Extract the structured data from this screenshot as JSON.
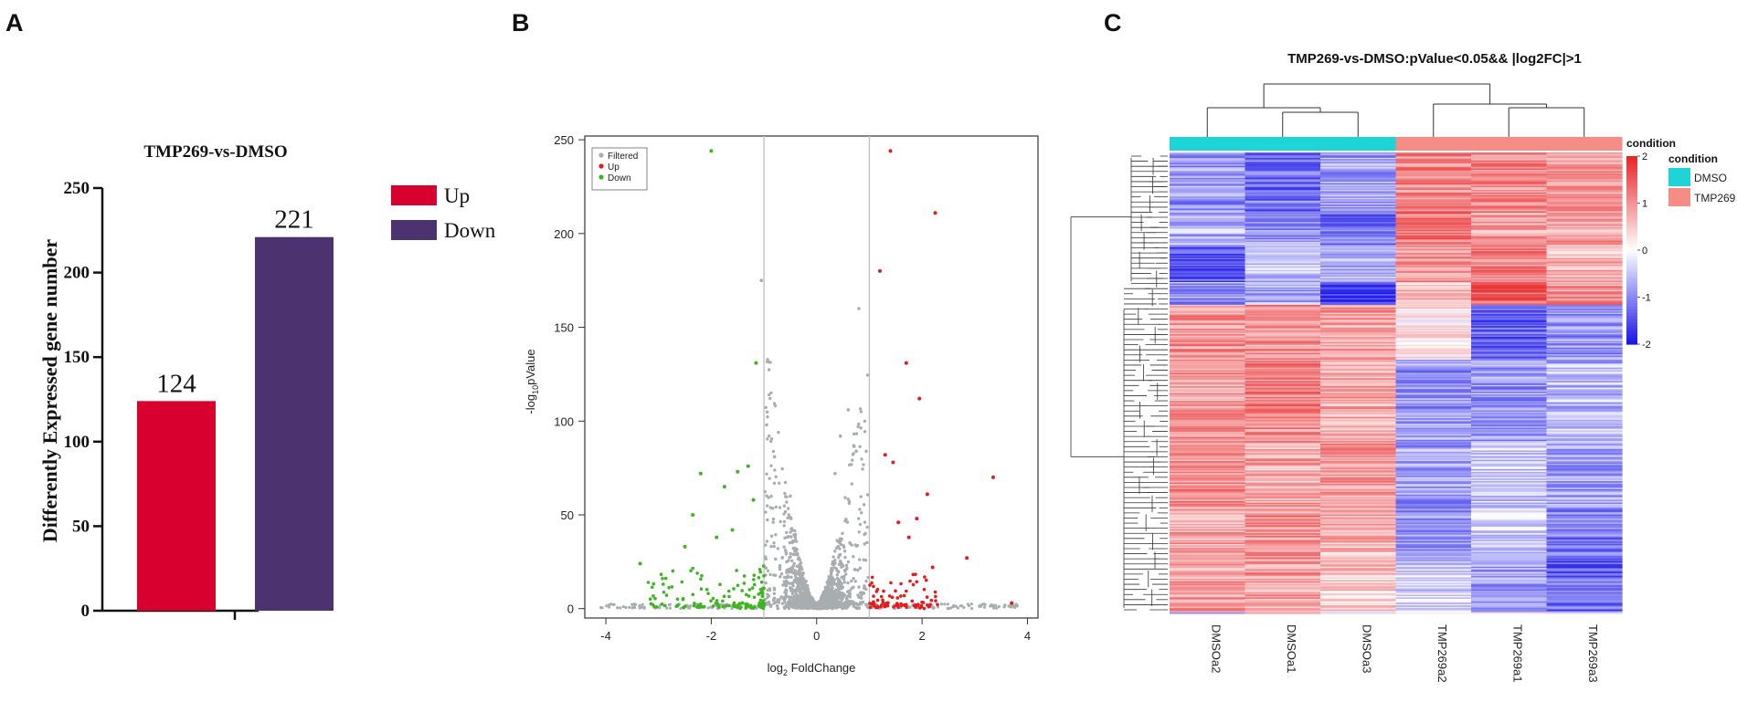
{
  "panels": {
    "a": {
      "letter": "A"
    },
    "b": {
      "letter": "B"
    },
    "c": {
      "letter": "C"
    }
  },
  "colors": {
    "up": "#d8002e",
    "down": "#4d3270",
    "volcano_filtered": "#a8adb0",
    "volcano_up": "#e41a1c",
    "volcano_down": "#3cb521",
    "dmso": "#1fd4d6",
    "tmp269": "#f58c85",
    "heat_high": "#e8272a",
    "heat_mid": "#ffffff",
    "heat_low": "#1c17e8"
  },
  "chart_data": [
    {
      "type": "bar",
      "title": "TMP269-vs-DMSO",
      "ylabel": "Differently Expressed gene number",
      "xlabel": "",
      "ylim": [
        0,
        250
      ],
      "yticks": [
        "0",
        "50",
        "100",
        "150",
        "200",
        "250"
      ],
      "categories": [
        "Up",
        "Down"
      ],
      "values": [
        124,
        221
      ],
      "value_labels": [
        "124",
        "221"
      ],
      "legend": [
        "Up",
        "Down"
      ]
    },
    {
      "type": "scatter",
      "title": "",
      "xlabel_prefix": "log",
      "xlabel_sub": "2",
      "xlabel_suffix": " FoldChange",
      "ylabel_prefix": "-log",
      "ylabel_sub": "10",
      "ylabel_suffix": "pValue",
      "xlim": [
        -4.4,
        4.2
      ],
      "ylim": [
        -5,
        252
      ],
      "xticks": [
        "-4",
        "-2",
        "0",
        "2",
        "4"
      ],
      "yticks": [
        "0",
        "50",
        "100",
        "150",
        "200",
        "250"
      ],
      "thresholds_x": [
        -1,
        1
      ],
      "legend": [
        "Filtered",
        "Up",
        "Down"
      ],
      "highlight_points": {
        "up": [
          [
            1.4,
            244
          ],
          [
            2.25,
            211
          ],
          [
            1.2,
            180
          ],
          [
            1.7,
            131
          ],
          [
            1.95,
            112
          ],
          [
            3.35,
            70
          ],
          [
            1.3,
            82
          ],
          [
            1.45,
            78
          ],
          [
            1.9,
            48
          ],
          [
            2.1,
            61
          ],
          [
            2.85,
            27
          ],
          [
            1.55,
            46
          ],
          [
            2.2,
            22
          ],
          [
            3.7,
            3
          ],
          [
            1.75,
            38
          ]
        ],
        "down": [
          [
            -2.0,
            244
          ],
          [
            -1.15,
            131
          ],
          [
            -2.2,
            72
          ],
          [
            -1.5,
            73
          ],
          [
            -1.3,
            76
          ],
          [
            -1.75,
            65
          ],
          [
            -3.35,
            24
          ],
          [
            -2.5,
            33
          ],
          [
            -1.6,
            42
          ],
          [
            -1.9,
            38
          ],
          [
            -1.2,
            58
          ],
          [
            -2.35,
            50
          ]
        ],
        "filtered": [
          [
            -1.05,
            175
          ],
          [
            0.8,
            160
          ],
          [
            0.6,
            106
          ],
          [
            0.45,
            92
          ],
          [
            -0.95,
            98
          ],
          [
            -0.8,
            81
          ],
          [
            0.35,
            72
          ],
          [
            0.75,
            84
          ],
          [
            -0.5,
            60
          ]
        ]
      }
    },
    {
      "type": "heatmap",
      "title": "TMP269-vs-DMSO:pValue<0.05&& |log2FC|>1",
      "columns": [
        "DMSOa2",
        "DMSOa1",
        "DMSOa3",
        "TMP269a2",
        "TMP269a1",
        "TMP269a3"
      ],
      "column_groups": [
        "DMSO",
        "DMSO",
        "DMSO",
        "TMP269",
        "TMP269",
        "TMP269"
      ],
      "row_count": 345,
      "zlim": [
        -2,
        2
      ],
      "colorbar_title": "condition",
      "colorbar_ticks": [
        "2",
        "1",
        "0",
        "-1",
        "-2"
      ],
      "legend_title": "condition",
      "legend": [
        "DMSO",
        "TMP269"
      ]
    }
  ]
}
